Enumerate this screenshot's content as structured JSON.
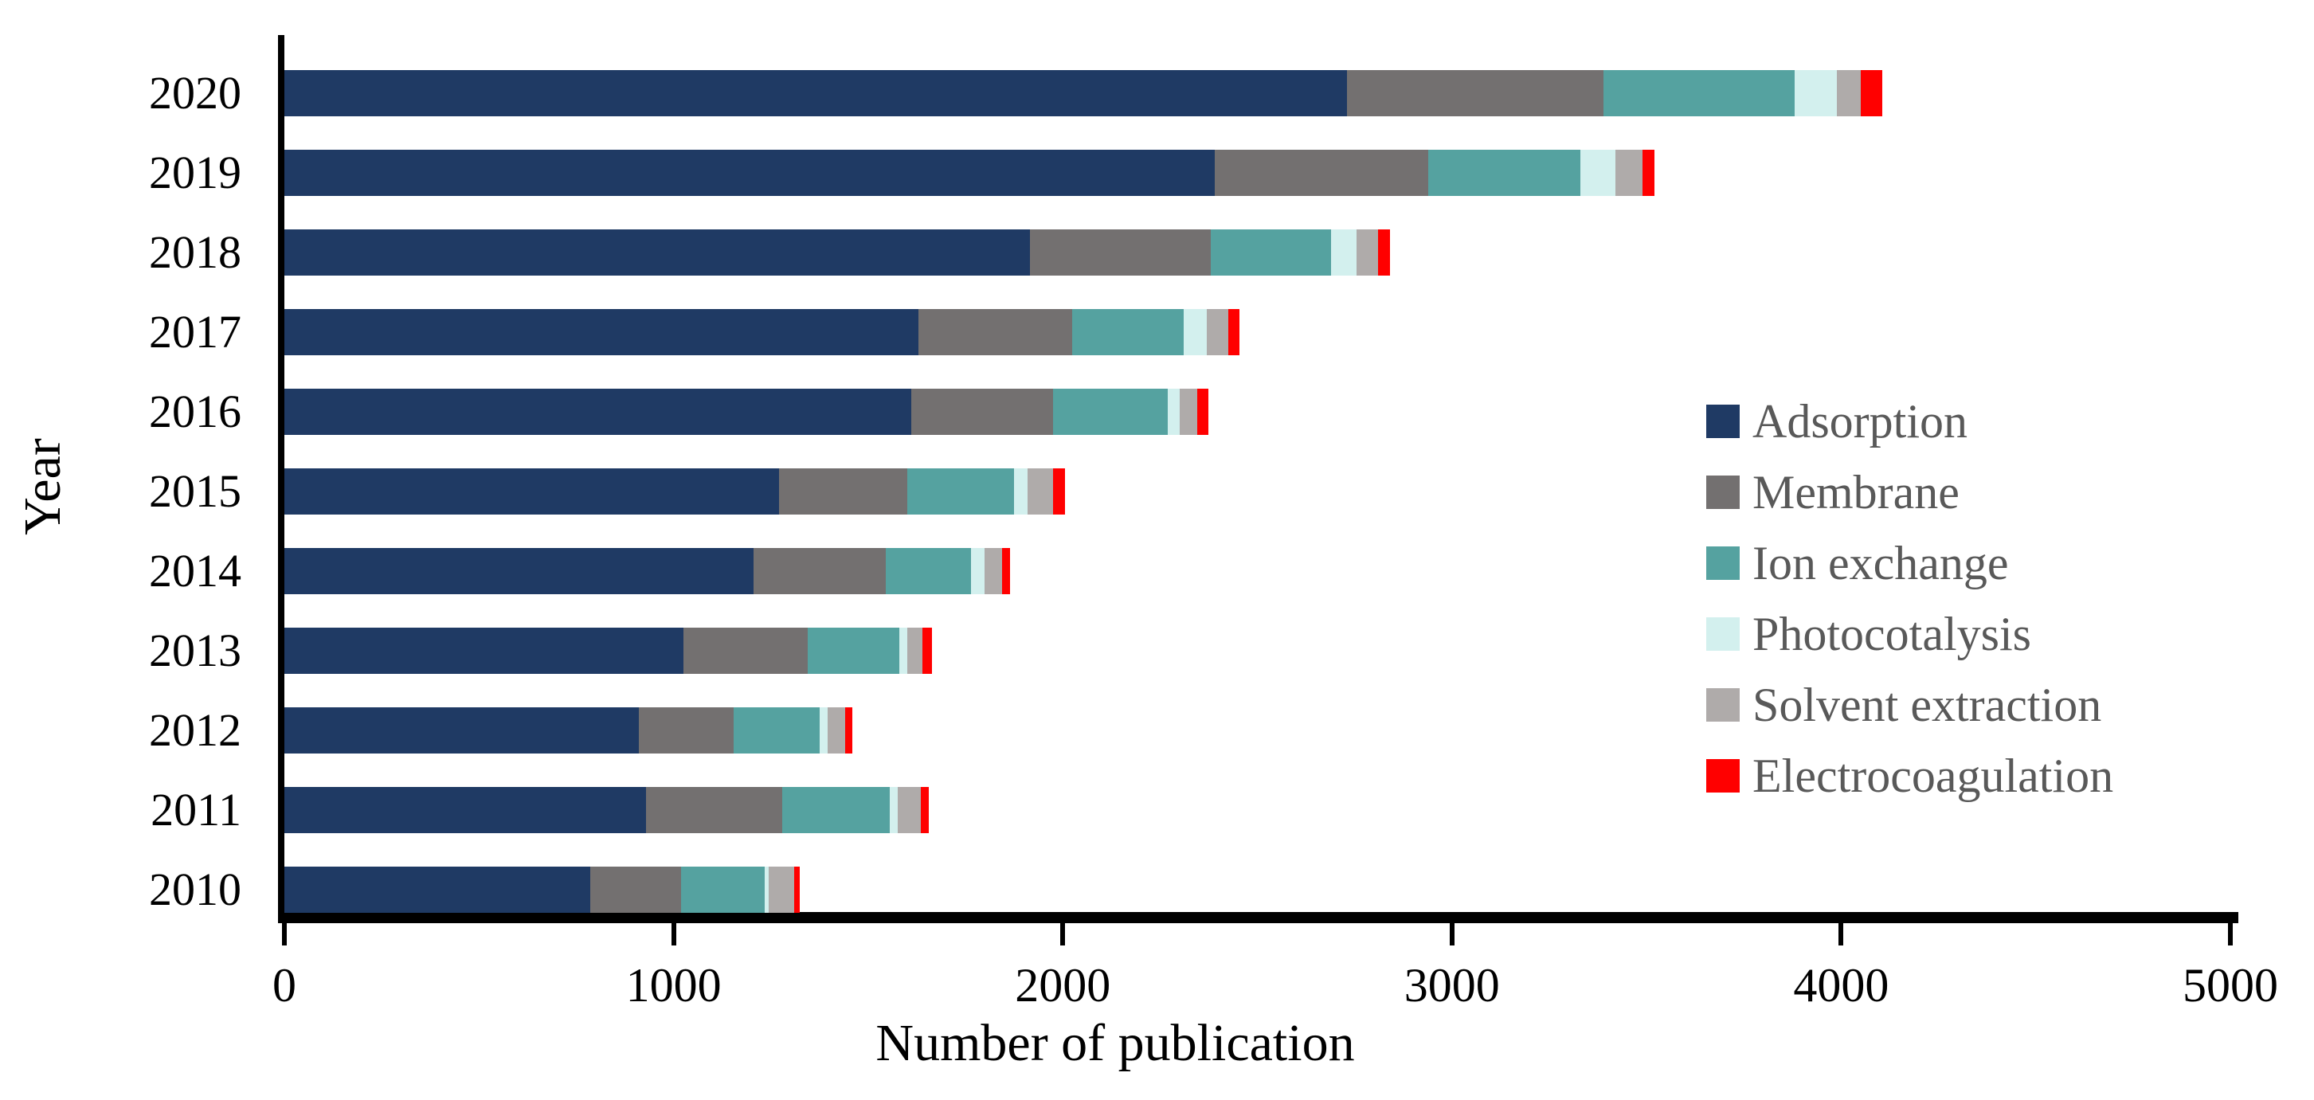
{
  "chart_data": {
    "type": "bar",
    "orientation": "horizontal",
    "stacked": true,
    "title": "",
    "xlabel": "Number of publication",
    "ylabel": "Year",
    "xlim": [
      0,
      5000
    ],
    "xticks": [
      0,
      1000,
      2000,
      3000,
      4000,
      5000
    ],
    "grid": false,
    "legend_position": "right-middle",
    "legend_text_color": "#595959",
    "axis_color": "#000000",
    "categories": [
      "2020",
      "2019",
      "2018",
      "2017",
      "2016",
      "2015",
      "2014",
      "2013",
      "2012",
      "2011",
      "2010"
    ],
    "series": [
      {
        "name": "Adsorption",
        "color": "#1F3A64",
        "values": [
          2730,
          2390,
          1915,
          1630,
          1610,
          1270,
          1205,
          1025,
          910,
          930,
          785
        ]
      },
      {
        "name": "Membrane",
        "color": "#737070",
        "values": [
          660,
          550,
          465,
          395,
          365,
          330,
          340,
          320,
          245,
          350,
          235
        ]
      },
      {
        "name": "Ion exchange",
        "color": "#55A2A0",
        "values": [
          490,
          390,
          310,
          285,
          295,
          275,
          220,
          235,
          220,
          275,
          215
        ]
      },
      {
        "name": "Photocotalysis",
        "color": "#D3F0EE",
        "values": [
          110,
          90,
          65,
          60,
          30,
          35,
          35,
          20,
          20,
          20,
          10
        ]
      },
      {
        "name": "Solvent extraction",
        "color": "#AFABAA",
        "values": [
          60,
          70,
          55,
          55,
          45,
          65,
          45,
          40,
          45,
          60,
          65
        ]
      },
      {
        "name": "Electrocoagulation",
        "color": "#FF0000",
        "values": [
          55,
          30,
          30,
          30,
          30,
          30,
          20,
          25,
          20,
          20,
          15
        ]
      }
    ],
    "totals": [
      4105,
      3520,
      2840,
      2455,
      2375,
      2005,
      1865,
      1665,
      1460,
      1655,
      1325
    ]
  }
}
